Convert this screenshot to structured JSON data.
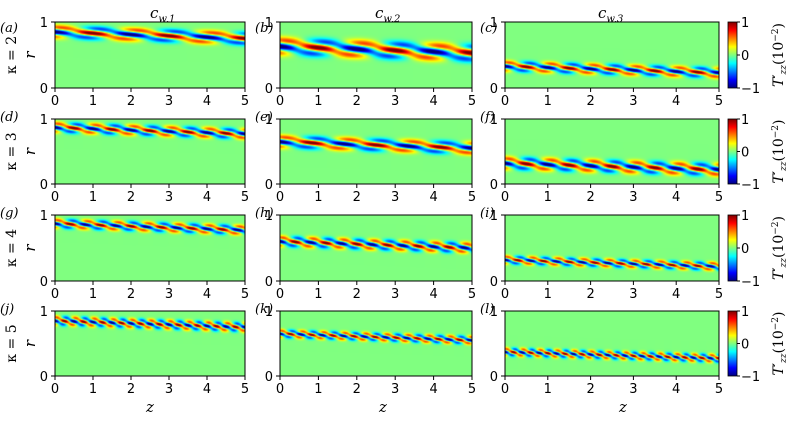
{
  "chart_data": {
    "type": "heatmap",
    "description_rows": "kappa",
    "description_cols": "wave speed",
    "column_titles": [
      "c",
      "c",
      "c"
    ],
    "column_title_subscripts": [
      "w,1",
      "w,2",
      "w,3"
    ],
    "row_labels": [
      "κ = 2",
      "κ = 3",
      "κ = 4",
      "κ = 5"
    ],
    "kappa": [
      2,
      3,
      4,
      5
    ],
    "panel_labels": [
      [
        "(a)",
        "(b)",
        "(c)"
      ],
      [
        "(d)",
        "(e)",
        "(f)"
      ],
      [
        "(g)",
        "(h)",
        "(i)"
      ],
      [
        "(j)",
        "(k)",
        "(l)"
      ]
    ],
    "xlabel": "z",
    "ylabel": "r",
    "xlim": [
      0,
      5
    ],
    "ylim": [
      0,
      1
    ],
    "xticks": [
      "0",
      "1",
      "2",
      "3",
      "4",
      "5"
    ],
    "yticks": [
      "0",
      "1"
    ],
    "colorbar": {
      "label_main": "T",
      "label_sub": "zz",
      "label_prime": "′",
      "label_scale": "(10",
      "label_exp": "−2",
      "label_close": ")",
      "ticks": [
        "1",
        "0",
        "−1"
      ],
      "vmin": -1,
      "vmax": 1
    },
    "panels": [
      [
        {
          "r0": 0.8,
          "half_width": 0.06,
          "wavelength": 2.0,
          "amp": 1.0
        },
        {
          "r0": 0.58,
          "half_width": 0.08,
          "wavelength": 2.0,
          "amp": 1.0
        },
        {
          "r0": 0.28,
          "half_width": 0.05,
          "wavelength": 1.0,
          "amp": 1.0
        }
      ],
      [
        {
          "r0": 0.82,
          "half_width": 0.05,
          "wavelength": 1.0,
          "amp": 1.0
        },
        {
          "r0": 0.6,
          "half_width": 0.06,
          "wavelength": 1.67,
          "amp": 1.0
        },
        {
          "r0": 0.27,
          "half_width": 0.06,
          "wavelength": 1.0,
          "amp": 1.0
        }
      ],
      [
        {
          "r0": 0.82,
          "half_width": 0.045,
          "wavelength": 0.8,
          "amp": 1.0
        },
        {
          "r0": 0.55,
          "half_width": 0.05,
          "wavelength": 0.8,
          "amp": 1.0
        },
        {
          "r0": 0.27,
          "half_width": 0.04,
          "wavelength": 0.6,
          "amp": 1.0
        }
      ],
      [
        {
          "r0": 0.8,
          "half_width": 0.045,
          "wavelength": 0.5,
          "amp": 1.0
        },
        {
          "r0": 0.6,
          "half_width": 0.04,
          "wavelength": 0.55,
          "amp": 1.0
        },
        {
          "r0": 0.32,
          "half_width": 0.04,
          "wavelength": 0.4,
          "amp": 1.0
        }
      ]
    ]
  }
}
